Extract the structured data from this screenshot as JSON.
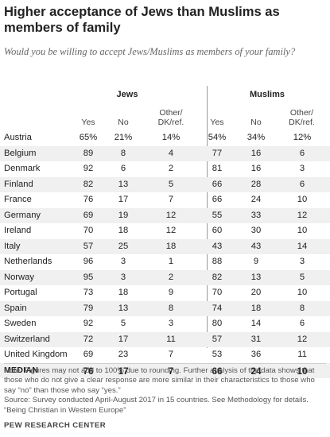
{
  "header": {
    "title": "Higher acceptance of Jews than Muslims as members of family",
    "subtitle": "Would you be willing to accept Jews/Muslims as members of your family?"
  },
  "groups": {
    "jews": "Jews",
    "muslims": "Muslims"
  },
  "columns": {
    "yes": "Yes",
    "no": "No",
    "other_line1": "Other/",
    "other_line2": "DK/ref."
  },
  "chart_data": {
    "type": "table",
    "title": "Higher acceptance of Jews than Muslims as members of family",
    "subtitle": "Would you be willing to accept Jews/Muslims as members of your family?",
    "column_groups": [
      "Jews",
      "Muslims"
    ],
    "columns": [
      "Yes",
      "No",
      "Other/DK/ref."
    ],
    "rows": [
      {
        "country": "Austria",
        "jews": [
          "65%",
          "21%",
          "14%"
        ],
        "muslims": [
          "54%",
          "34%",
          "12%"
        ]
      },
      {
        "country": "Belgium",
        "jews": [
          "89",
          "8",
          "4"
        ],
        "muslims": [
          "77",
          "16",
          "6"
        ]
      },
      {
        "country": "Denmark",
        "jews": [
          "92",
          "6",
          "2"
        ],
        "muslims": [
          "81",
          "16",
          "3"
        ]
      },
      {
        "country": "Finland",
        "jews": [
          "82",
          "13",
          "5"
        ],
        "muslims": [
          "66",
          "28",
          "6"
        ]
      },
      {
        "country": "France",
        "jews": [
          "76",
          "17",
          "7"
        ],
        "muslims": [
          "66",
          "24",
          "10"
        ]
      },
      {
        "country": "Germany",
        "jews": [
          "69",
          "19",
          "12"
        ],
        "muslims": [
          "55",
          "33",
          "12"
        ]
      },
      {
        "country": "Ireland",
        "jews": [
          "70",
          "18",
          "12"
        ],
        "muslims": [
          "60",
          "30",
          "10"
        ]
      },
      {
        "country": "Italy",
        "jews": [
          "57",
          "25",
          "18"
        ],
        "muslims": [
          "43",
          "43",
          "14"
        ]
      },
      {
        "country": "Netherlands",
        "jews": [
          "96",
          "3",
          "1"
        ],
        "muslims": [
          "88",
          "9",
          "3"
        ]
      },
      {
        "country": "Norway",
        "jews": [
          "95",
          "3",
          "2"
        ],
        "muslims": [
          "82",
          "13",
          "5"
        ]
      },
      {
        "country": "Portugal",
        "jews": [
          "73",
          "18",
          "9"
        ],
        "muslims": [
          "70",
          "20",
          "10"
        ]
      },
      {
        "country": "Spain",
        "jews": [
          "79",
          "13",
          "8"
        ],
        "muslims": [
          "74",
          "18",
          "8"
        ]
      },
      {
        "country": "Sweden",
        "jews": [
          "92",
          "5",
          "3"
        ],
        "muslims": [
          "80",
          "14",
          "6"
        ]
      },
      {
        "country": "Switzerland",
        "jews": [
          "72",
          "17",
          "11"
        ],
        "muslims": [
          "57",
          "31",
          "12"
        ]
      },
      {
        "country": "United Kingdom",
        "jews": [
          "69",
          "23",
          "7"
        ],
        "muslims": [
          "53",
          "36",
          "11"
        ]
      }
    ],
    "median": {
      "country": "MEDIAN",
      "jews": [
        "76",
        "17",
        "7"
      ],
      "muslims": [
        "66",
        "24",
        "10"
      ]
    }
  },
  "notes": {
    "note": "Note: Figures may not add to 100% due to rounding. Further analysis of the data shows that those who do not give a clear response are more similar in their characteristics to those who say “no” than those who say “yes.”",
    "source": "Source: Survey conducted April-August 2017 in 15 countries. See Methodology for details.",
    "report": "“Being Christian in Western Europe”"
  },
  "footer": {
    "org": "PEW RESEARCH CENTER"
  }
}
